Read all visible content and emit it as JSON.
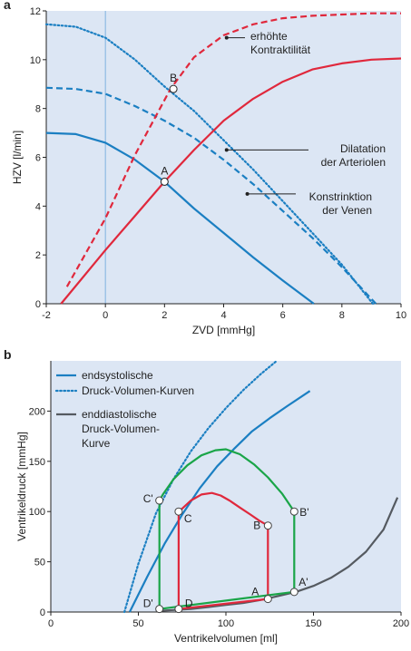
{
  "colors": {
    "background": "#dce6f4",
    "blue": "#1b7fc2",
    "red": "#e0283c",
    "green": "#1aa548",
    "gray": "#555a60"
  },
  "chart_data": [
    {
      "panel_label": "a",
      "type": "line",
      "xlabel": "ZVD [mmHg]",
      "ylabel": "HZV [l/min]",
      "xlim": [
        -2,
        10
      ],
      "ylim": [
        0,
        12
      ],
      "xticks": [
        "-2",
        "0",
        "2",
        "4",
        "6",
        "8",
        "10"
      ],
      "yticks": [
        "0",
        "2",
        "4",
        "6",
        "8",
        "10",
        "12"
      ],
      "grid": false,
      "series": [
        {
          "color": "blue",
          "style": "solid",
          "x": [
            -2,
            -1,
            0,
            1,
            2,
            3,
            4,
            5,
            6,
            7.05
          ],
          "y": [
            7.0,
            6.95,
            6.6,
            5.9,
            5.0,
            3.9,
            2.9,
            1.9,
            0.95,
            0.0
          ]
        },
        {
          "color": "blue",
          "style": "dashed",
          "x": [
            -2,
            -1,
            0,
            1,
            2,
            3,
            4,
            5,
            6,
            7,
            8,
            9.15
          ],
          "y": [
            8.85,
            8.8,
            8.6,
            8.1,
            7.5,
            6.8,
            5.9,
            4.9,
            3.8,
            2.7,
            1.5,
            0.0
          ]
        },
        {
          "color": "blue",
          "style": "dotted",
          "x": [
            -2,
            -1,
            0,
            1,
            2,
            3,
            4,
            5,
            6,
            7,
            8,
            9.05
          ],
          "y": [
            11.45,
            11.35,
            10.9,
            10.0,
            8.9,
            7.9,
            6.7,
            5.5,
            4.2,
            2.9,
            1.6,
            0.0
          ]
        },
        {
          "color": "red",
          "style": "solid",
          "x": [
            -1.5,
            0,
            1,
            2,
            3,
            4,
            5,
            6,
            7,
            8,
            9,
            10
          ],
          "y": [
            0.0,
            2.2,
            3.6,
            5.0,
            6.3,
            7.5,
            8.4,
            9.1,
            9.6,
            9.85,
            10.0,
            10.05
          ]
        },
        {
          "color": "red",
          "style": "dashed",
          "x": [
            -1.3,
            0,
            1,
            2.2,
            3,
            4,
            5,
            6,
            7,
            8,
            9,
            10
          ],
          "y": [
            0.7,
            3.5,
            6.1,
            8.8,
            10.1,
            11.0,
            11.45,
            11.7,
            11.8,
            11.85,
            11.9,
            11.9
          ]
        }
      ],
      "points": [
        {
          "label": "A",
          "x": 2.0,
          "y": 5.0
        },
        {
          "label": "B",
          "x": 2.3,
          "y": 8.8
        }
      ],
      "annotations": [
        {
          "text": [
            "erhöhte",
            "Kontraktilität"
          ]
        },
        {
          "text": [
            "Dilatation",
            "der Arteriolen"
          ]
        },
        {
          "text": [
            "Konstrinktion",
            "der Venen"
          ]
        }
      ],
      "vertical_reference_x": 0
    },
    {
      "panel_label": "b",
      "type": "line",
      "xlabel": "Ventrikelvolumen [ml]",
      "ylabel": "Ventrikeldruck [mmHg]",
      "xlim": [
        0,
        200
      ],
      "ylim": [
        0,
        250
      ],
      "xticks": [
        "0",
        "50",
        "100",
        "150",
        "200"
      ],
      "yticks": [
        "0",
        "50",
        "100",
        "150",
        "200"
      ],
      "grid": false,
      "legend": {
        "placement": "top-left",
        "entries": [
          {
            "label": [
              "endsystolische",
              "Druck-Volumen-Kurven"
            ],
            "color": "blue",
            "style": "solid+dotted"
          },
          {
            "label": [
              "enddiastolische",
              "Druck-Volumen-",
              "Kurve"
            ],
            "color": "gray",
            "style": "solid"
          }
        ]
      },
      "series": [
        {
          "color": "blue",
          "style": "dotted",
          "x": [
            42,
            50,
            60,
            70,
            80,
            90,
            100,
            110,
            120,
            129
          ],
          "y": [
            0,
            48,
            98,
            132,
            160,
            183,
            203,
            221,
            237,
            250
          ]
        },
        {
          "color": "blue",
          "style": "solid",
          "x": [
            45,
            55,
            65,
            75,
            85,
            95,
            105,
            115,
            125,
            135,
            148
          ],
          "y": [
            0,
            35,
            68,
            97,
            123,
            145,
            163,
            180,
            193,
            205,
            220
          ]
        },
        {
          "color": "gray",
          "style": "solid",
          "x": [
            60,
            70,
            80,
            90,
            100,
            110,
            120,
            130,
            140,
            150,
            160,
            170,
            180,
            190,
            198
          ],
          "y": [
            1,
            2,
            3,
            5,
            7,
            9,
            12,
            16,
            20,
            26,
            34,
            45,
            60,
            82,
            114
          ]
        },
        {
          "color": "red",
          "style": "solid",
          "x": [
            73,
            73,
            75,
            80,
            86,
            92,
            97,
            102,
            108,
            114,
            119,
            124,
            124,
            73
          ],
          "y": [
            3,
            100,
            103,
            111,
            117,
            118.5,
            116,
            111,
            104,
            97,
            91,
            86,
            13,
            3
          ]
        },
        {
          "color": "green",
          "style": "solid",
          "x": [
            62,
            62,
            64,
            70,
            78,
            86,
            94,
            100,
            108,
            116,
            124,
            132,
            139,
            139,
            62
          ],
          "y": [
            3,
            111,
            117,
            132,
            146,
            156,
            161,
            162,
            157,
            147,
            134,
            118,
            100,
            20,
            3
          ]
        }
      ],
      "points": [
        {
          "label": "A",
          "x": 124,
          "y": 13,
          "color": "red"
        },
        {
          "label": "B",
          "x": 124,
          "y": 86,
          "color": "red"
        },
        {
          "label": "C",
          "x": 73,
          "y": 100,
          "color": "red"
        },
        {
          "label": "D",
          "x": 73,
          "y": 3,
          "color": "red"
        },
        {
          "label": "A'",
          "x": 139,
          "y": 20,
          "color": "green"
        },
        {
          "label": "B'",
          "x": 139,
          "y": 100,
          "color": "green"
        },
        {
          "label": "C'",
          "x": 62,
          "y": 111,
          "color": "green"
        },
        {
          "label": "D'",
          "x": 62,
          "y": 3,
          "color": "green"
        }
      ]
    }
  ]
}
